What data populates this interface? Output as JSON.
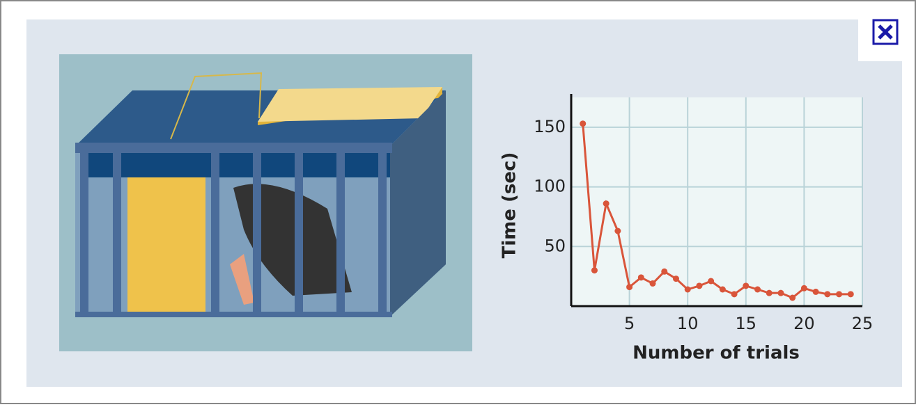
{
  "chart_data": {
    "type": "line",
    "x_label": "Number of trials",
    "y_label": "Time (sec)",
    "x": [
      1,
      2,
      3,
      4,
      5,
      6,
      7,
      8,
      9,
      10,
      11,
      12,
      13,
      14,
      15,
      16,
      17,
      18,
      19,
      20,
      21,
      22,
      23,
      24
    ],
    "series": [
      {
        "name": "Time",
        "color": "#d9553a",
        "values": [
          153,
          30,
          86,
          63,
          16,
          24,
          19,
          29,
          23,
          14,
          17,
          21,
          14,
          10,
          17,
          14,
          11,
          11,
          7,
          15,
          12,
          10,
          10,
          10
        ]
      }
    ],
    "xlim": [
      0,
      25
    ],
    "xticks": [
      5,
      10,
      15,
      20,
      25
    ],
    "ylim": [
      0,
      175
    ],
    "yticks": [
      50,
      100,
      150
    ],
    "grid": true
  }
}
